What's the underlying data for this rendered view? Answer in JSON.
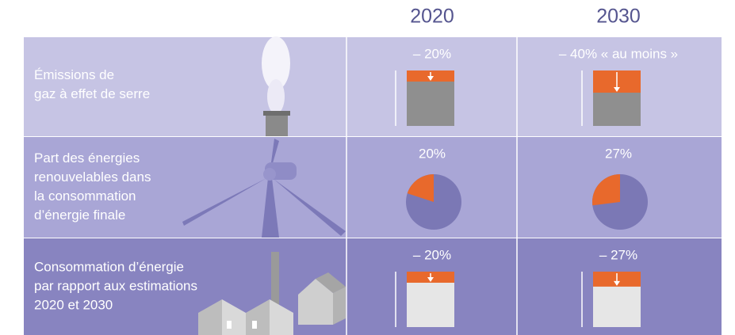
{
  "columns": [
    "2020",
    "2030"
  ],
  "rows": [
    {
      "label": [
        "Émissions de",
        "gaz à effet de serre"
      ],
      "kind": "reduction",
      "bar": "#8f8f8f",
      "cells": [
        {
          "label": "– 20%",
          "value": 20
        },
        {
          "label": "– 40% « au moins »",
          "value": 40
        }
      ]
    },
    {
      "label": [
        "Part des énergies",
        "renouvelables dans",
        "la consommation",
        "d’énergie finale"
      ],
      "kind": "pie",
      "cells": [
        {
          "label": "20%",
          "value": 20
        },
        {
          "label": "27%",
          "value": 27
        }
      ]
    },
    {
      "label": [
        "Consommation d’énergie",
        "par rapport aux estimations",
        "2020 et 2030"
      ],
      "kind": "reduction",
      "bar": "#e6e6e6",
      "cells": [
        {
          "label": "– 20%",
          "value": 20
        },
        {
          "label": "– 27%",
          "value": 27
        }
      ]
    }
  ]
}
